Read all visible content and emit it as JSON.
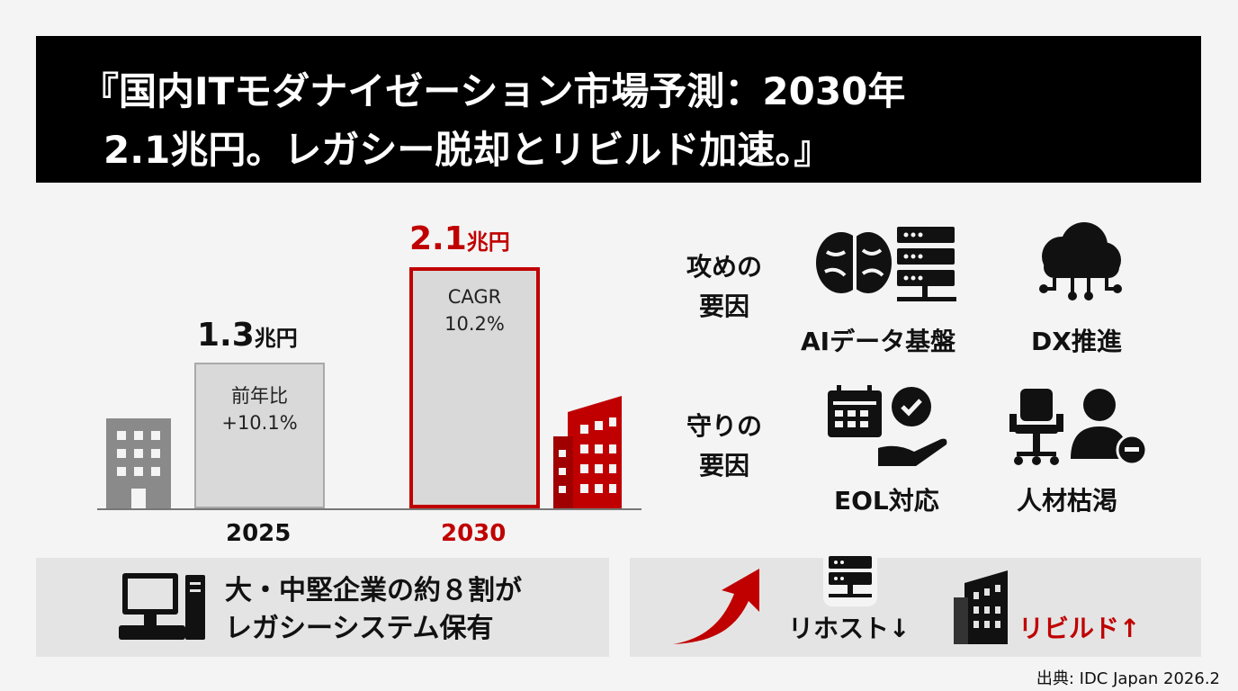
{
  "title": {
    "line1": "『国内ITモダナイゼーション市場予測：2030年",
    "line2": "2.1兆円。レガシー脱却とリビルド加速。』"
  },
  "chart_data": {
    "type": "bar",
    "categories": [
      "2025",
      "2030"
    ],
    "values": [
      1.3,
      2.1
    ],
    "value_labels": [
      {
        "number": "1.3",
        "unit": "兆円"
      },
      {
        "number": "2.1",
        "unit": "兆円"
      }
    ],
    "bar_notes": [
      [
        "前年比",
        "+10.1%"
      ],
      [
        "CAGR",
        "10.2%"
      ]
    ],
    "colors": {
      "bar_2025": "#d9d9d9",
      "accent": "#c00000",
      "grey_building": "#8a8a8a"
    }
  },
  "factors": {
    "offense": {
      "label_line1": "攻めの",
      "label_line2": "要因",
      "items": [
        {
          "icon": "brain-server-icon",
          "label": "AIデータ基盤"
        },
        {
          "icon": "cloud-network-icon",
          "label": "DX推進"
        }
      ]
    },
    "defense": {
      "label_line1": "守りの",
      "label_line2": "要因",
      "items": [
        {
          "icon": "calendar-hand-check-icon",
          "label": "EOL対応"
        },
        {
          "icon": "chair-person-minus-icon",
          "label": "人材枯渇"
        }
      ]
    }
  },
  "bottom_left": {
    "icon": "desktop-computer-icon",
    "line1": "大・中堅企業の約８割が",
    "line2": "レガシーシステム保有"
  },
  "bottom_right": {
    "rehost": "リホスト↓",
    "rebuild": "リビルド↑"
  },
  "source": "出典: IDC Japan 2026.2"
}
